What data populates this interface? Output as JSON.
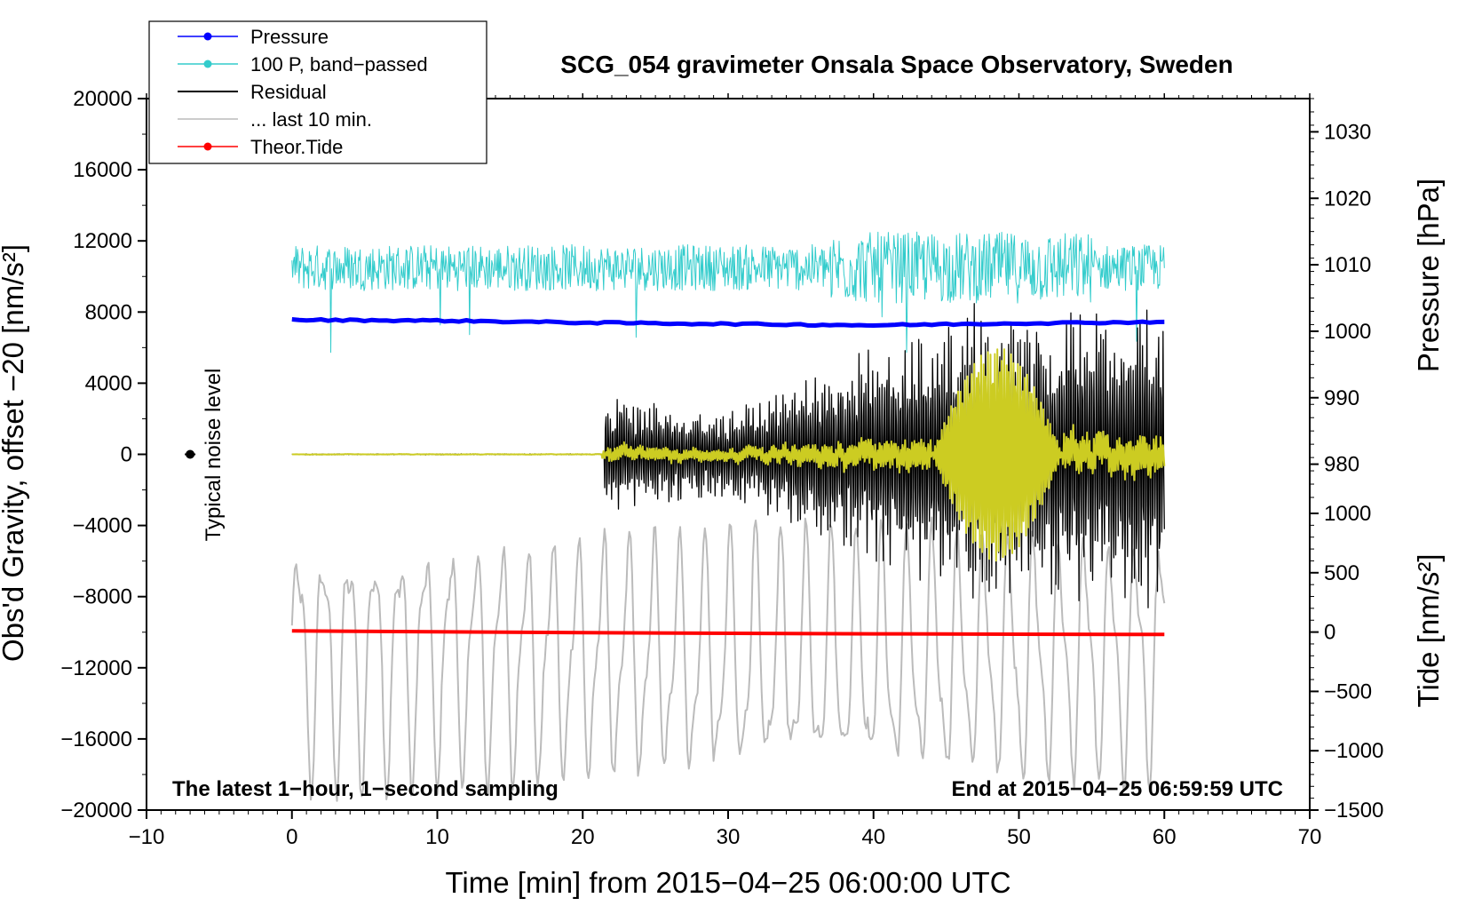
{
  "chart_data": {
    "type": "line",
    "title": "SCG_054 gravimeter Onsala Space Observatory, Sweden",
    "xlabel": "Time [min] from 2015−04−25 06:00:00 UTC",
    "ylabel_left": "Obs'd Gravity, offset −20 [nm/s²]",
    "ylabel_right_top": "Pressure [hPa]",
    "ylabel_right_bottom": "Tide [nm/s²]",
    "xlim": [
      -10,
      70
    ],
    "ylim_left": [
      -20000,
      20000
    ],
    "ylim_pressure": [
      970,
      1035
    ],
    "ylim_tide": [
      -1500,
      1000
    ],
    "x_ticks": [
      {
        "v": -10,
        "label": "−10"
      },
      {
        "v": 0,
        "label": "0"
      },
      {
        "v": 10,
        "label": "10"
      },
      {
        "v": 20,
        "label": "20"
      },
      {
        "v": 30,
        "label": "30"
      },
      {
        "v": 40,
        "label": "40"
      },
      {
        "v": 50,
        "label": "50"
      },
      {
        "v": 60,
        "label": "60"
      },
      {
        "v": 70,
        "label": "70"
      }
    ],
    "y_ticks_left": [
      {
        "v": 20000,
        "label": "20000"
      },
      {
        "v": 16000,
        "label": "16000"
      },
      {
        "v": 12000,
        "label": "12000"
      },
      {
        "v": 8000,
        "label": "8000"
      },
      {
        "v": 4000,
        "label": "4000"
      },
      {
        "v": 0,
        "label": "0"
      },
      {
        "v": -4000,
        "label": "−4000"
      },
      {
        "v": -8000,
        "label": "−8000"
      },
      {
        "v": -12000,
        "label": "−12000"
      },
      {
        "v": -16000,
        "label": "−16000"
      },
      {
        "v": -20000,
        "label": "−20000"
      }
    ],
    "y_ticks_pressure": [
      {
        "v": 1030,
        "label": "1030"
      },
      {
        "v": 1020,
        "label": "1020"
      },
      {
        "v": 1010,
        "label": "1010"
      },
      {
        "v": 1000,
        "label": "1000"
      },
      {
        "v": 990,
        "label": "990"
      },
      {
        "v": 980,
        "label": "980"
      }
    ],
    "y_ticks_tide": [
      {
        "v": 1000,
        "label": "1000"
      },
      {
        "v": 500,
        "label": "500"
      },
      {
        "v": 0,
        "label": "0"
      },
      {
        "v": -500,
        "label": "−500"
      },
      {
        "v": -1000,
        "label": "−1000"
      },
      {
        "v": -1500,
        "label": "−1500"
      }
    ],
    "legend": [
      {
        "name": "Pressure",
        "color": "#0000ff",
        "marker": true
      },
      {
        "name": "100 P, band−passed",
        "color": "#33cccc",
        "marker": true
      },
      {
        "name": "Residual",
        "color": "#000000",
        "marker": false
      },
      {
        "name": "... last 10 min.",
        "color": "#bbbbbb",
        "marker": false
      },
      {
        "name": "Theor.Tide",
        "color": "#ff0000",
        "marker": true
      }
    ],
    "legend_position": "top-left",
    "annotations": {
      "bottom_left": "The latest 1−hour, 1−second sampling",
      "bottom_right": "End at 2015−04−25 06:59:59 UTC",
      "noise_label": "Typical noise level"
    },
    "series": [
      {
        "name": "Pressure",
        "axis": "pressure",
        "color": "#0000ff",
        "x": [
          0,
          10,
          20,
          30,
          40,
          50,
          60
        ],
        "y": [
          1001.7,
          1001.6,
          1001.3,
          1001.1,
          1000.9,
          1001.2,
          1001.4
        ]
      },
      {
        "name": "100 P, band−passed",
        "axis": "left",
        "color": "#33cccc",
        "x_range": [
          0,
          60
        ],
        "baseline": 10500,
        "amplitude_nm_s2": [
          1000,
          2200
        ]
      },
      {
        "name": "Residual",
        "axis": "left",
        "color": "#000000",
        "x_range": [
          0,
          60
        ],
        "quiet_until": 21.5,
        "envelope": [
          {
            "x": 21.5,
            "a": 3500
          },
          {
            "x": 30,
            "a": 2500
          },
          {
            "x": 38,
            "a": 5500
          },
          {
            "x": 45,
            "a": 8500
          },
          {
            "x": 60,
            "a": 9000
          }
        ]
      },
      {
        "name": "... last 10 min.",
        "axis": "left",
        "color": "#bbbbbb",
        "x_range": [
          0,
          60
        ],
        "range_nm_s2": [
          -20000,
          -3500
        ]
      },
      {
        "name": "Theor.Tide",
        "axis": "tide",
        "color": "#ff0000",
        "x": [
          0,
          20,
          40,
          60
        ],
        "y": [
          10,
          -5,
          -15,
          -20
        ]
      }
    ],
    "noise_level": {
      "x": -7,
      "y": 0
    }
  }
}
